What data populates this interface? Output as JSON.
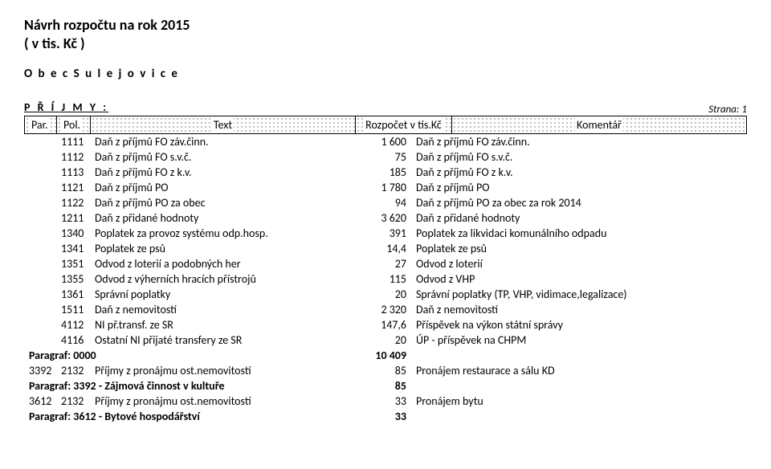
{
  "header": {
    "title": "Návrh rozpočtu na rok 2015",
    "unit": "( v tis. Kč )",
    "org": "O b e c   S u l e j o v i c e",
    "section": "P Ř Í J M Y :",
    "page_label": "Strana: 1"
  },
  "columns": {
    "par": "Par.",
    "pol": "Pol.",
    "text": "Text",
    "amount": "Rozpočet v tis.Kč",
    "comment": "Komentář"
  },
  "col_widths": {
    "par": 40,
    "pol": 42,
    "text": 330,
    "amt": 70
  },
  "rows": [
    {
      "par": "",
      "pol": "1111",
      "text": "Daň z příjmů FO záv.činn.",
      "amt": "1 600",
      "comment": "Daň z příjmů FO záv.činn."
    },
    {
      "par": "",
      "pol": "1112",
      "text": "Daň z příjmů FO s.v.č.",
      "amt": "75",
      "comment": "Daň z příjmů FO s.v.č."
    },
    {
      "par": "",
      "pol": "1113",
      "text": "Daň z příjmů FO z k.v.",
      "amt": "185",
      "comment": "Daň z příjmů FO z k.v."
    },
    {
      "par": "",
      "pol": "1121",
      "text": "Daň z příjmů PO",
      "amt": "1 780",
      "comment": "Daň z příjmů PO"
    },
    {
      "par": "",
      "pol": "1122",
      "text": "Daň z příjmů PO za obec",
      "amt": "94",
      "comment": "Daň z příjmů PO za obec za rok 2014"
    },
    {
      "par": "",
      "pol": "1211",
      "text": "Daň z přidané hodnoty",
      "amt": "3 620",
      "comment": "Daň z přidané hodnoty"
    },
    {
      "par": "",
      "pol": "1340",
      "text": "Poplatek za provoz systému odp.hosp.",
      "amt": "391",
      "comment": "Poplatek za likvidaci komunálního odpadu"
    },
    {
      "par": "",
      "pol": "1341",
      "text": "Poplatek ze psů",
      "amt": "14,4",
      "comment": "Poplatek ze psů"
    },
    {
      "par": "",
      "pol": "1351",
      "text": "Odvod z loterií a podobných her",
      "amt": "27",
      "comment": "Odvod z loterií"
    },
    {
      "par": "",
      "pol": "1355",
      "text": "Odvod z výherních hracích přístrojů",
      "amt": "115",
      "comment": "Odvod z VHP"
    },
    {
      "par": "",
      "pol": "1361",
      "text": "Správní poplatky",
      "amt": "20",
      "comment": "Správní poplatky (TP, VHP, vidimace,legalizace)"
    },
    {
      "par": "",
      "pol": "1511",
      "text": "Daň z nemovitostí",
      "amt": "2 320",
      "comment": "Daň z nemovitostí"
    },
    {
      "par": "",
      "pol": "4112",
      "text": "NI př.transf. ze SR",
      "amt": "147,6",
      "comment": "Příspěvek na výkon státní správy"
    },
    {
      "par": "",
      "pol": "4116",
      "text": "Ostatní NI přijaté transfery ze SR",
      "amt": "20",
      "comment": "ÚP - příspěvek na CHPM"
    }
  ],
  "para0": {
    "label": "Paragraf: 0000",
    "amt": "10 409"
  },
  "row_3392": {
    "par": "3392",
    "pol": "2132",
    "text": "Příjmy z pronájmu ost.nemovitostí",
    "amt": "85",
    "comment": "Pronájem restaurace a sálu KD"
  },
  "para3392": {
    "label": "Paragraf: 3392 - Zájmová činnost v kultuře",
    "amt": "85"
  },
  "row_3612": {
    "par": "3612",
    "pol": "2132",
    "text": "Příjmy z pronájmu ost.nemovitostí",
    "amt": "33",
    "comment": "Pronájem bytu"
  },
  "para3612": {
    "label": "Paragraf: 3612 - Bytové hospodářství",
    "amt": "33"
  }
}
